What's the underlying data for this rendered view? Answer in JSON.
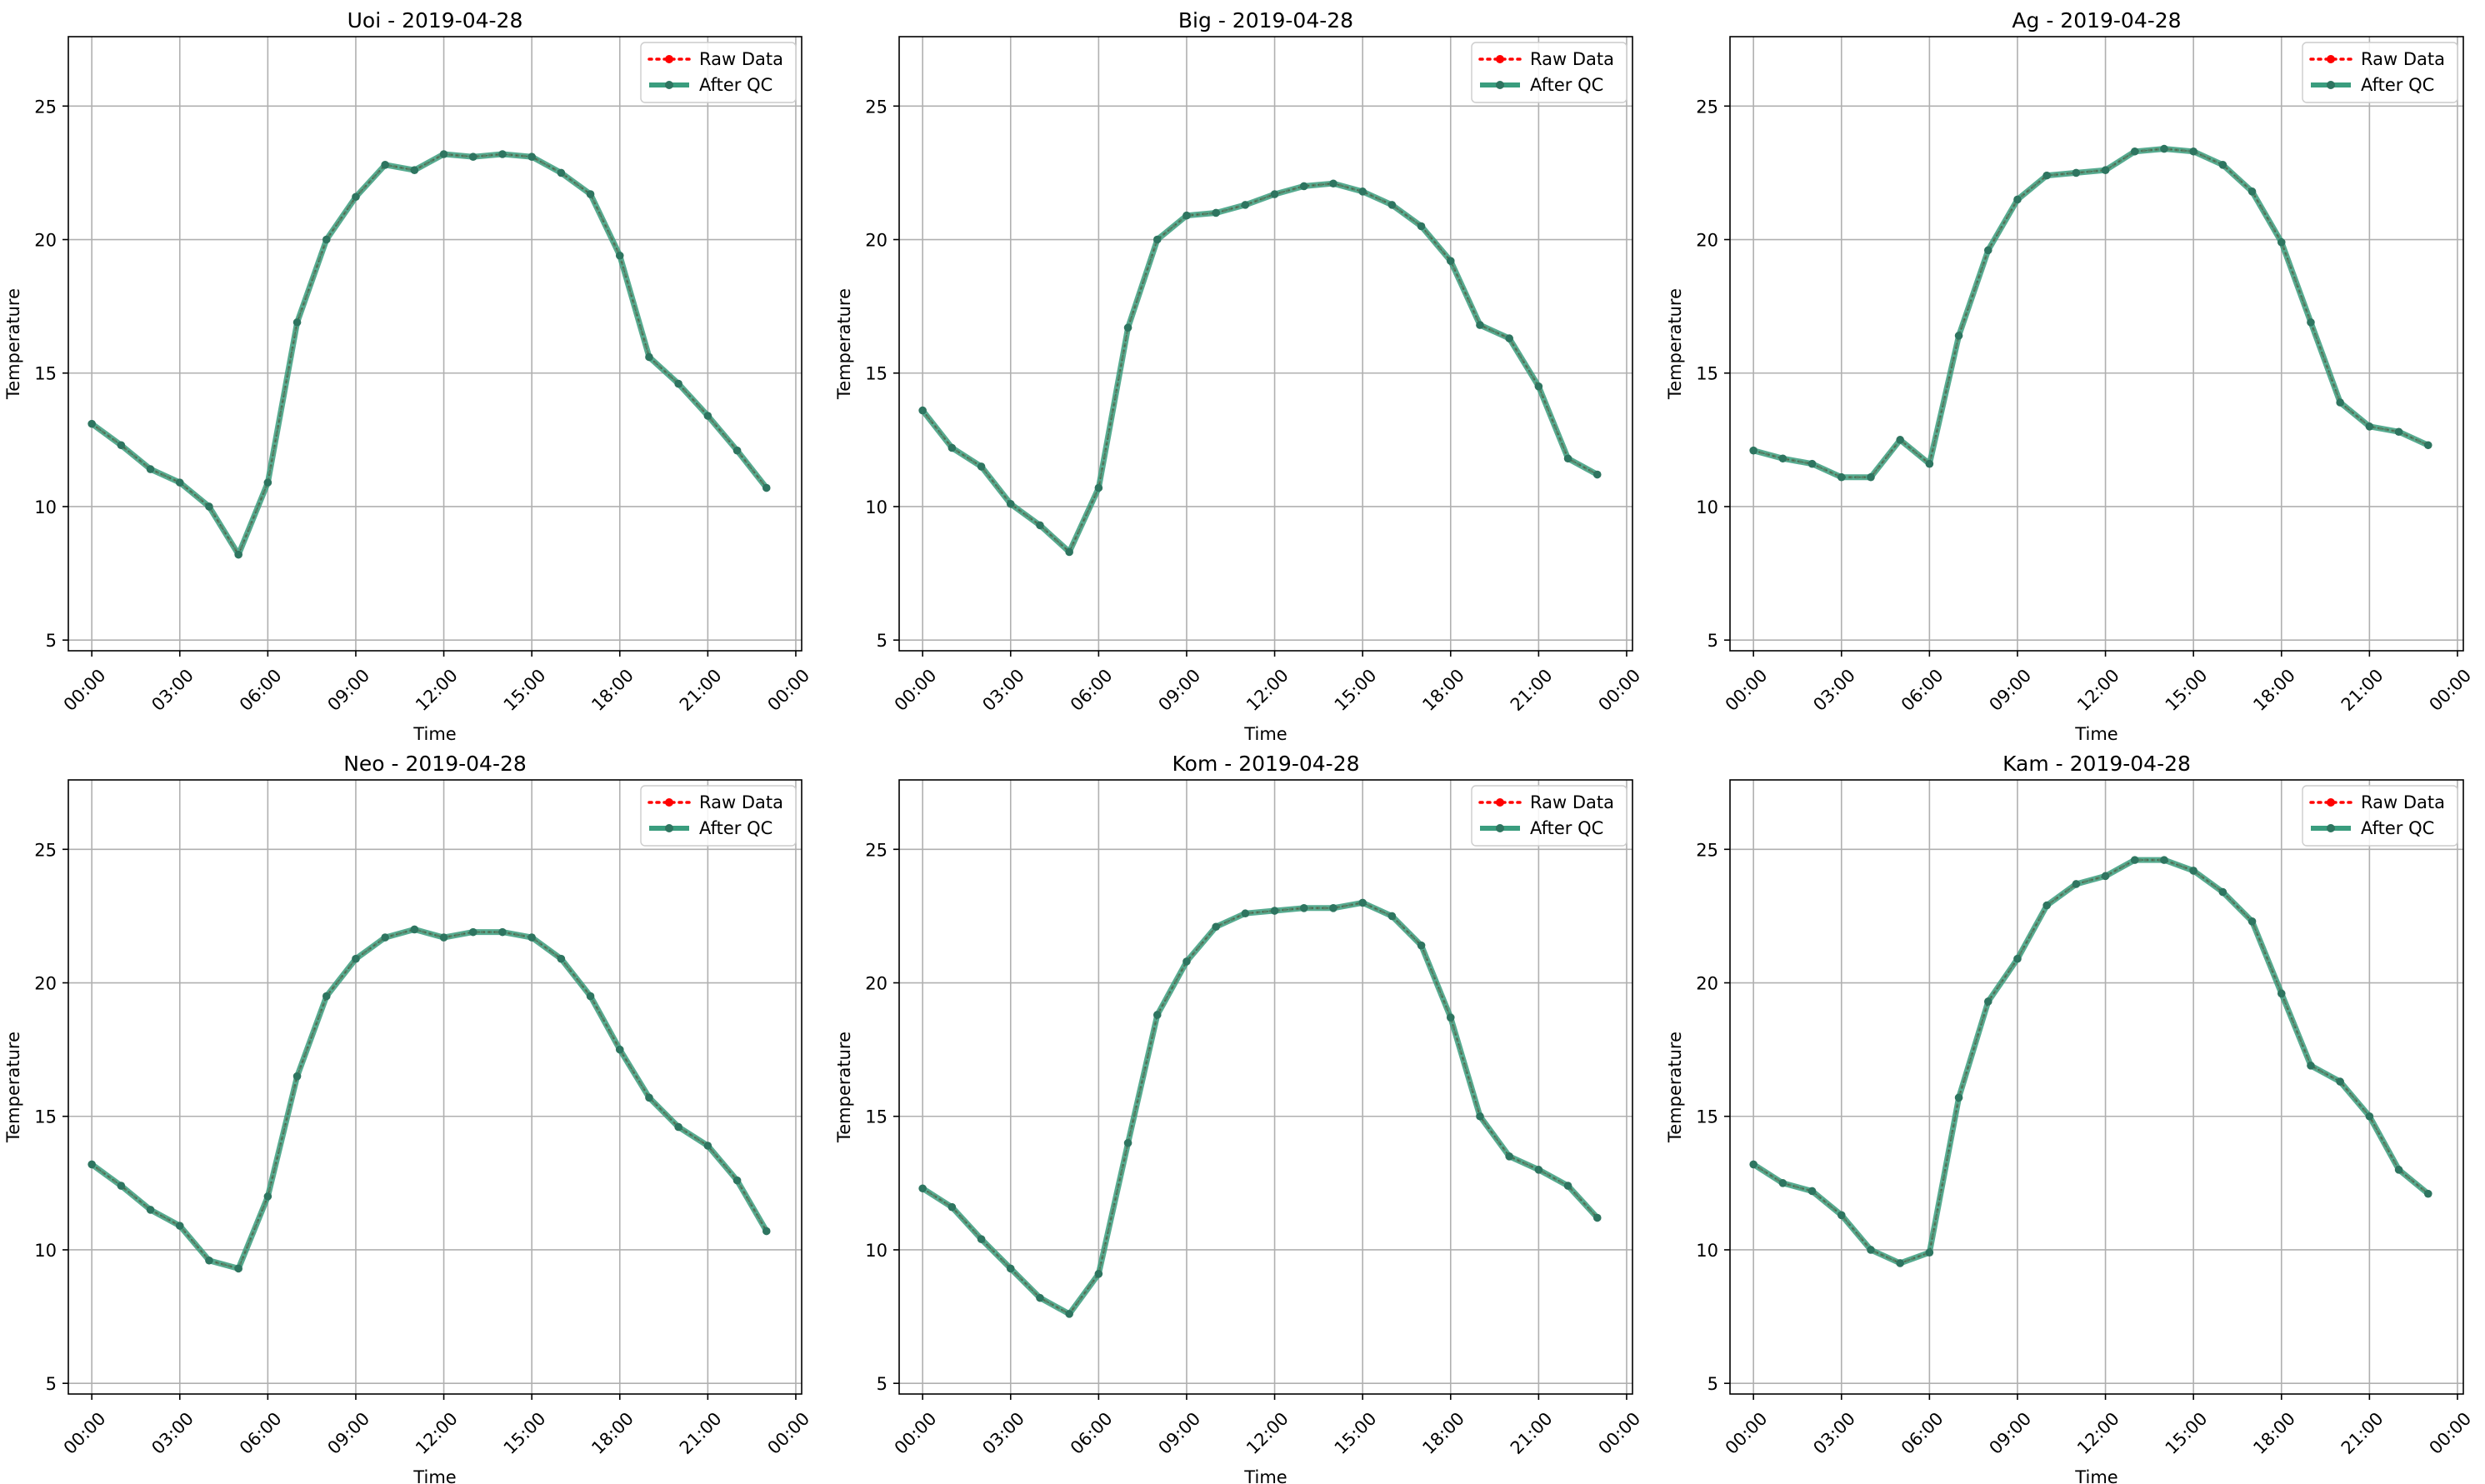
{
  "figure": {
    "shared": {
      "xlabel": "Time",
      "ylabel": "Temperature",
      "xlim": [
        -0.8,
        24.2
      ],
      "ylim": [
        4.6,
        27.6
      ],
      "yticks": [
        5,
        10,
        15,
        20,
        25
      ],
      "xticks": [
        0,
        3,
        6,
        9,
        12,
        15,
        18,
        21,
        24
      ],
      "xtick_labels": [
        "00:00",
        "03:00",
        "06:00",
        "09:00",
        "12:00",
        "15:00",
        "18:00",
        "21:00",
        "00:00"
      ],
      "grid": true,
      "legend_position": "top-right",
      "legend": [
        {
          "label": "Raw Data",
          "style": "dotted",
          "color": "#ff0000"
        },
        {
          "label": "After QC",
          "style": "solid",
          "color": "#3a9d7e"
        }
      ],
      "colors": {
        "raw": "#ff0000",
        "qc_line": "#3a9d7e",
        "qc_marker": "#2e7560",
        "grid": "#b0b0b0"
      }
    }
  },
  "chart_data": [
    {
      "type": "line",
      "title": "Uoi - 2019-04-28",
      "xlabel": "Time",
      "ylabel": "Temperature",
      "x": [
        0,
        1,
        2,
        3,
        4,
        5,
        6,
        7,
        8,
        9,
        10,
        11,
        12,
        13,
        14,
        15,
        16,
        17,
        18,
        19,
        20,
        21,
        22,
        23
      ],
      "series": [
        {
          "name": "Raw Data",
          "values": [
            13.1,
            12.3,
            11.4,
            10.9,
            10.0,
            8.2,
            10.9,
            16.9,
            20.0,
            21.6,
            22.8,
            22.6,
            23.2,
            23.1,
            23.2,
            23.1,
            22.5,
            21.7,
            19.4,
            15.6,
            14.6,
            13.4,
            12.1,
            10.7
          ]
        },
        {
          "name": "After QC",
          "values": [
            13.1,
            12.3,
            11.4,
            10.9,
            10.0,
            8.2,
            10.9,
            16.9,
            20.0,
            21.6,
            22.8,
            22.6,
            23.2,
            23.1,
            23.2,
            23.1,
            22.5,
            21.7,
            19.4,
            15.6,
            14.6,
            13.4,
            12.1,
            10.7
          ]
        }
      ]
    },
    {
      "type": "line",
      "title": "Big - 2019-04-28",
      "xlabel": "Time",
      "ylabel": "Temperature",
      "x": [
        0,
        1,
        2,
        3,
        4,
        5,
        6,
        7,
        8,
        9,
        10,
        11,
        12,
        13,
        14,
        15,
        16,
        17,
        18,
        19,
        20,
        21,
        22,
        23
      ],
      "series": [
        {
          "name": "Raw Data",
          "values": [
            13.6,
            12.2,
            11.5,
            10.1,
            9.3,
            8.3,
            10.7,
            16.7,
            20.0,
            20.9,
            21.0,
            21.3,
            21.7,
            22.0,
            22.1,
            21.8,
            21.3,
            20.5,
            19.2,
            16.8,
            16.3,
            14.5,
            11.8,
            11.2
          ]
        },
        {
          "name": "After QC",
          "values": [
            13.6,
            12.2,
            11.5,
            10.1,
            9.3,
            8.3,
            10.7,
            16.7,
            20.0,
            20.9,
            21.0,
            21.3,
            21.7,
            22.0,
            22.1,
            21.8,
            21.3,
            20.5,
            19.2,
            16.8,
            16.3,
            14.5,
            11.8,
            11.2
          ]
        }
      ]
    },
    {
      "type": "line",
      "title": "Ag - 2019-04-28",
      "xlabel": "Time",
      "ylabel": "Temperature",
      "x": [
        0,
        1,
        2,
        3,
        4,
        5,
        6,
        7,
        8,
        9,
        10,
        11,
        12,
        13,
        14,
        15,
        16,
        17,
        18,
        19,
        20,
        21,
        22,
        23
      ],
      "series": [
        {
          "name": "Raw Data",
          "values": [
            12.1,
            11.8,
            11.6,
            11.1,
            11.1,
            12.5,
            11.6,
            16.4,
            19.6,
            21.5,
            22.4,
            22.5,
            22.6,
            23.3,
            23.4,
            23.3,
            22.8,
            21.8,
            19.9,
            16.9,
            13.9,
            13.0,
            12.8,
            12.3
          ]
        },
        {
          "name": "After QC",
          "values": [
            12.1,
            11.8,
            11.6,
            11.1,
            11.1,
            12.5,
            11.6,
            16.4,
            19.6,
            21.5,
            22.4,
            22.5,
            22.6,
            23.3,
            23.4,
            23.3,
            22.8,
            21.8,
            19.9,
            16.9,
            13.9,
            13.0,
            12.8,
            12.3
          ]
        }
      ]
    },
    {
      "type": "line",
      "title": "Neo - 2019-04-28",
      "xlabel": "Time",
      "ylabel": "Temperature",
      "x": [
        0,
        1,
        2,
        3,
        4,
        5,
        6,
        7,
        8,
        9,
        10,
        11,
        12,
        13,
        14,
        15,
        16,
        17,
        18,
        19,
        20,
        21,
        22,
        23
      ],
      "series": [
        {
          "name": "Raw Data",
          "values": [
            13.2,
            12.4,
            11.5,
            10.9,
            9.6,
            9.3,
            12.0,
            16.5,
            19.5,
            20.9,
            21.7,
            22.0,
            21.7,
            21.9,
            21.9,
            21.7,
            20.9,
            19.5,
            17.5,
            15.7,
            14.6,
            13.9,
            12.6,
            10.7
          ]
        },
        {
          "name": "After QC",
          "values": [
            13.2,
            12.4,
            11.5,
            10.9,
            9.6,
            9.3,
            12.0,
            16.5,
            19.5,
            20.9,
            21.7,
            22.0,
            21.7,
            21.9,
            21.9,
            21.7,
            20.9,
            19.5,
            17.5,
            15.7,
            14.6,
            13.9,
            12.6,
            10.7
          ]
        }
      ]
    },
    {
      "type": "line",
      "title": "Kom - 2019-04-28",
      "xlabel": "Time",
      "ylabel": "Temperature",
      "x": [
        0,
        1,
        2,
        3,
        4,
        5,
        6,
        7,
        8,
        9,
        10,
        11,
        12,
        13,
        14,
        15,
        16,
        17,
        18,
        19,
        20,
        21,
        22,
        23
      ],
      "series": [
        {
          "name": "Raw Data",
          "values": [
            12.3,
            11.6,
            10.4,
            9.3,
            8.2,
            7.6,
            9.1,
            14.0,
            18.8,
            20.8,
            22.1,
            22.6,
            22.7,
            22.8,
            22.8,
            23.0,
            22.5,
            21.4,
            18.7,
            15.0,
            13.5,
            13.0,
            12.4,
            11.2
          ]
        },
        {
          "name": "After QC",
          "values": [
            12.3,
            11.6,
            10.4,
            9.3,
            8.2,
            7.6,
            9.1,
            14.0,
            18.8,
            20.8,
            22.1,
            22.6,
            22.7,
            22.8,
            22.8,
            23.0,
            22.5,
            21.4,
            18.7,
            15.0,
            13.5,
            13.0,
            12.4,
            11.2
          ]
        }
      ]
    },
    {
      "type": "line",
      "title": "Kam - 2019-04-28",
      "xlabel": "Time",
      "ylabel": "Temperature",
      "x": [
        0,
        1,
        2,
        3,
        4,
        5,
        6,
        7,
        8,
        9,
        10,
        11,
        12,
        13,
        14,
        15,
        16,
        17,
        18,
        19,
        20,
        21,
        22,
        23
      ],
      "series": [
        {
          "name": "Raw Data",
          "values": [
            13.2,
            12.5,
            12.2,
            11.3,
            10.0,
            9.5,
            9.9,
            15.7,
            19.3,
            20.9,
            22.9,
            23.7,
            24.0,
            24.6,
            24.6,
            24.2,
            23.4,
            22.3,
            19.6,
            16.9,
            16.3,
            15.0,
            13.0,
            12.1
          ]
        },
        {
          "name": "After QC",
          "values": [
            13.2,
            12.5,
            12.2,
            11.3,
            10.0,
            9.5,
            9.9,
            15.7,
            19.3,
            20.9,
            22.9,
            23.7,
            24.0,
            24.6,
            24.6,
            24.2,
            23.4,
            22.3,
            19.6,
            16.9,
            16.3,
            15.0,
            13.0,
            12.1
          ]
        }
      ]
    }
  ]
}
